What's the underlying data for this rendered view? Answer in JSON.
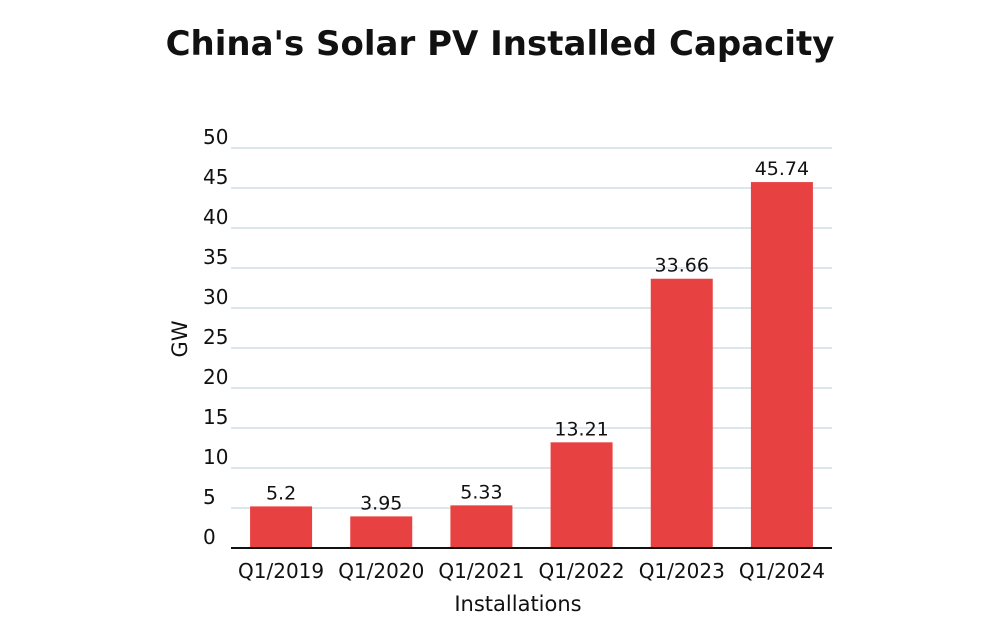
{
  "chart_data": {
    "type": "bar",
    "title": "China's Solar PV Installed Capacity",
    "xlabel": "Installations",
    "ylabel": "GW",
    "categories": [
      "Q1/2019",
      "Q1/2020",
      "Q1/2021",
      "Q1/2022",
      "Q1/2023",
      "Q1/2024"
    ],
    "values": [
      5.2,
      3.95,
      5.33,
      13.21,
      33.66,
      45.74
    ],
    "value_labels": [
      "5.2",
      "3.95",
      "5.33",
      "13.21",
      "33.66",
      "45.74"
    ],
    "yticks": [
      0,
      5,
      10,
      15,
      20,
      25,
      30,
      35,
      40,
      45,
      50
    ],
    "ylim": [
      0,
      50
    ],
    "grid": true,
    "legend": "none",
    "colors": {
      "bar": "#e84142",
      "grid": "#c8d6e2",
      "axis": "#111111",
      "text": "#111111"
    }
  }
}
